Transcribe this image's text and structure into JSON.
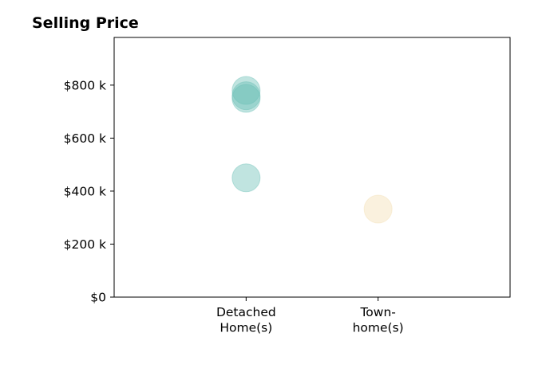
{
  "chart_data": {
    "type": "scatter",
    "title": "Selling Price",
    "xlabel": "",
    "ylabel": "",
    "categories": [
      {
        "lines": [
          "Detached",
          "Home(s)"
        ],
        "color": "#69bfb4"
      },
      {
        "lines": [
          "Town-",
          "home(s)"
        ],
        "color": "#f3ddb1"
      }
    ],
    "y_ticks": [
      {
        "value": 0,
        "label": "$0"
      },
      {
        "value": 200000,
        "label": "$200 k"
      },
      {
        "value": 400000,
        "label": "$400 k"
      },
      {
        "value": 600000,
        "label": "$600 k"
      },
      {
        "value": 800000,
        "label": "$800 k"
      }
    ],
    "ylim": [
      0,
      980000
    ],
    "xlim": [
      -1,
      2
    ],
    "points": [
      {
        "category": 0,
        "value": 780000
      },
      {
        "category": 0,
        "value": 760000
      },
      {
        "category": 0,
        "value": 750000
      },
      {
        "category": 0,
        "value": 450000
      },
      {
        "category": 1,
        "value": 332000
      }
    ],
    "grid": false,
    "legend": "none"
  }
}
